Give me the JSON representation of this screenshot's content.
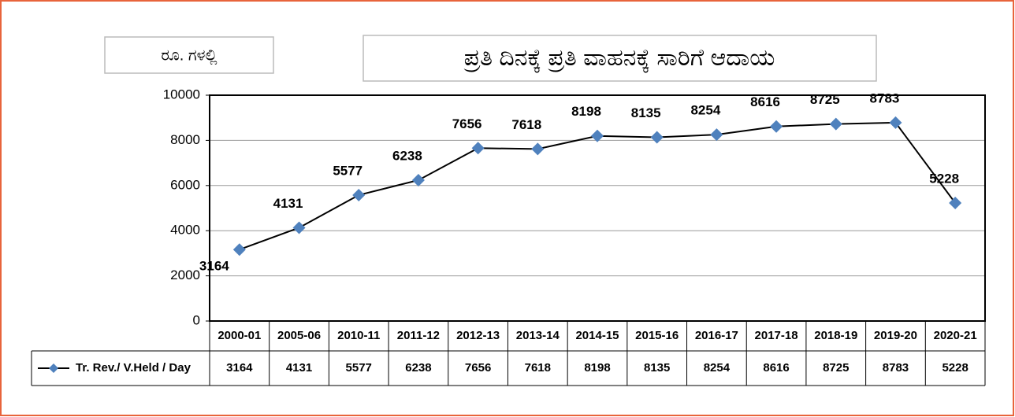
{
  "chart_data": {
    "type": "line",
    "title": "ಪ್ರತಿ ದಿನಕ್ಕೆ ಪ್ರತಿ ವಾಹನಕ್ಕೆ ಸಾರಿಗೆ ಆದಾಯ",
    "unit_label": "ರೂ. ಗಳಲ್ಲಿ",
    "categories": [
      "2000-01",
      "2005-06",
      "2010-11",
      "2011-12",
      "2012-13",
      "2013-14",
      "2014-15",
      "2015-16",
      "2016-17",
      "2017-18",
      "2018-19",
      "2019-20",
      "2020-21"
    ],
    "series": [
      {
        "name": "Tr. Rev./ V.Held / Day",
        "color": "#4f81bd",
        "line_color": "#000000",
        "values": [
          3164,
          4131,
          5577,
          6238,
          7656,
          7618,
          8198,
          8135,
          8254,
          8616,
          8725,
          8783,
          5228
        ]
      }
    ],
    "ylim": [
      0,
      10000
    ],
    "yticks": [
      0,
      2000,
      4000,
      6000,
      8000,
      10000
    ],
    "grid": true,
    "data_table": true
  }
}
